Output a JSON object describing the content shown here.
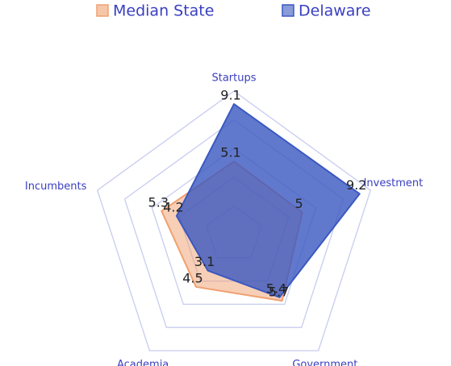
{
  "chart_data": {
    "type": "radar",
    "categories": [
      "Startups",
      "Investment",
      "Government",
      "Academia",
      "Incumbents"
    ],
    "series": [
      {
        "name": "Median State",
        "color": "#f0a070",
        "values": [
          5.1,
          5.0,
          5.7,
          4.5,
          5.3
        ]
      },
      {
        "name": "Delaware",
        "color": "#3a58c0",
        "values": [
          9.1,
          9.2,
          5.4,
          3.1,
          4.2
        ]
      }
    ],
    "rlim": [
      0,
      10
    ],
    "legend": "top"
  }
}
